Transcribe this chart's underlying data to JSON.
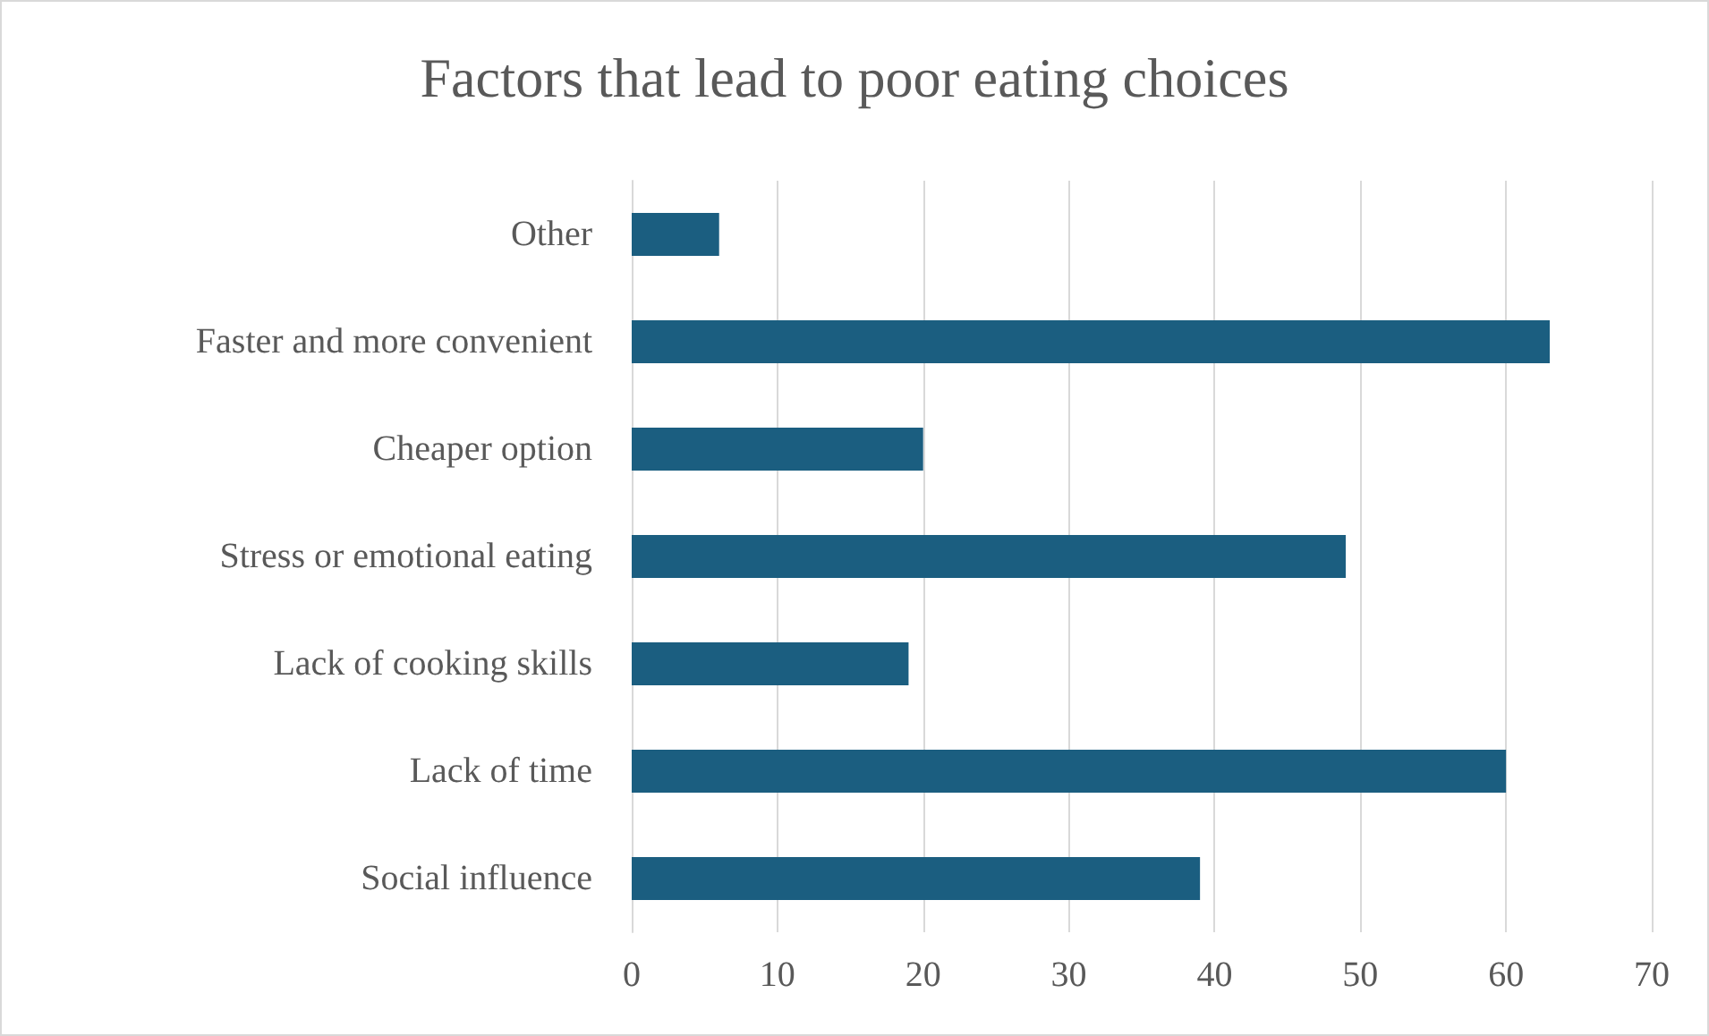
{
  "chart_data": {
    "type": "bar",
    "orientation": "horizontal",
    "title": "Factors that lead to poor eating choices",
    "categories": [
      "Other",
      "Faster and more convenient",
      "Cheaper option",
      "Stress or emotional eating",
      "Lack of cooking skills",
      "Lack of time",
      "Social influence"
    ],
    "values": [
      6,
      63,
      20,
      49,
      19,
      60,
      39
    ],
    "color": "#1b5e80",
    "xlim": [
      0,
      70
    ],
    "xticks": [
      0,
      10,
      20,
      30,
      40,
      50,
      60,
      70
    ],
    "grid": "x"
  }
}
